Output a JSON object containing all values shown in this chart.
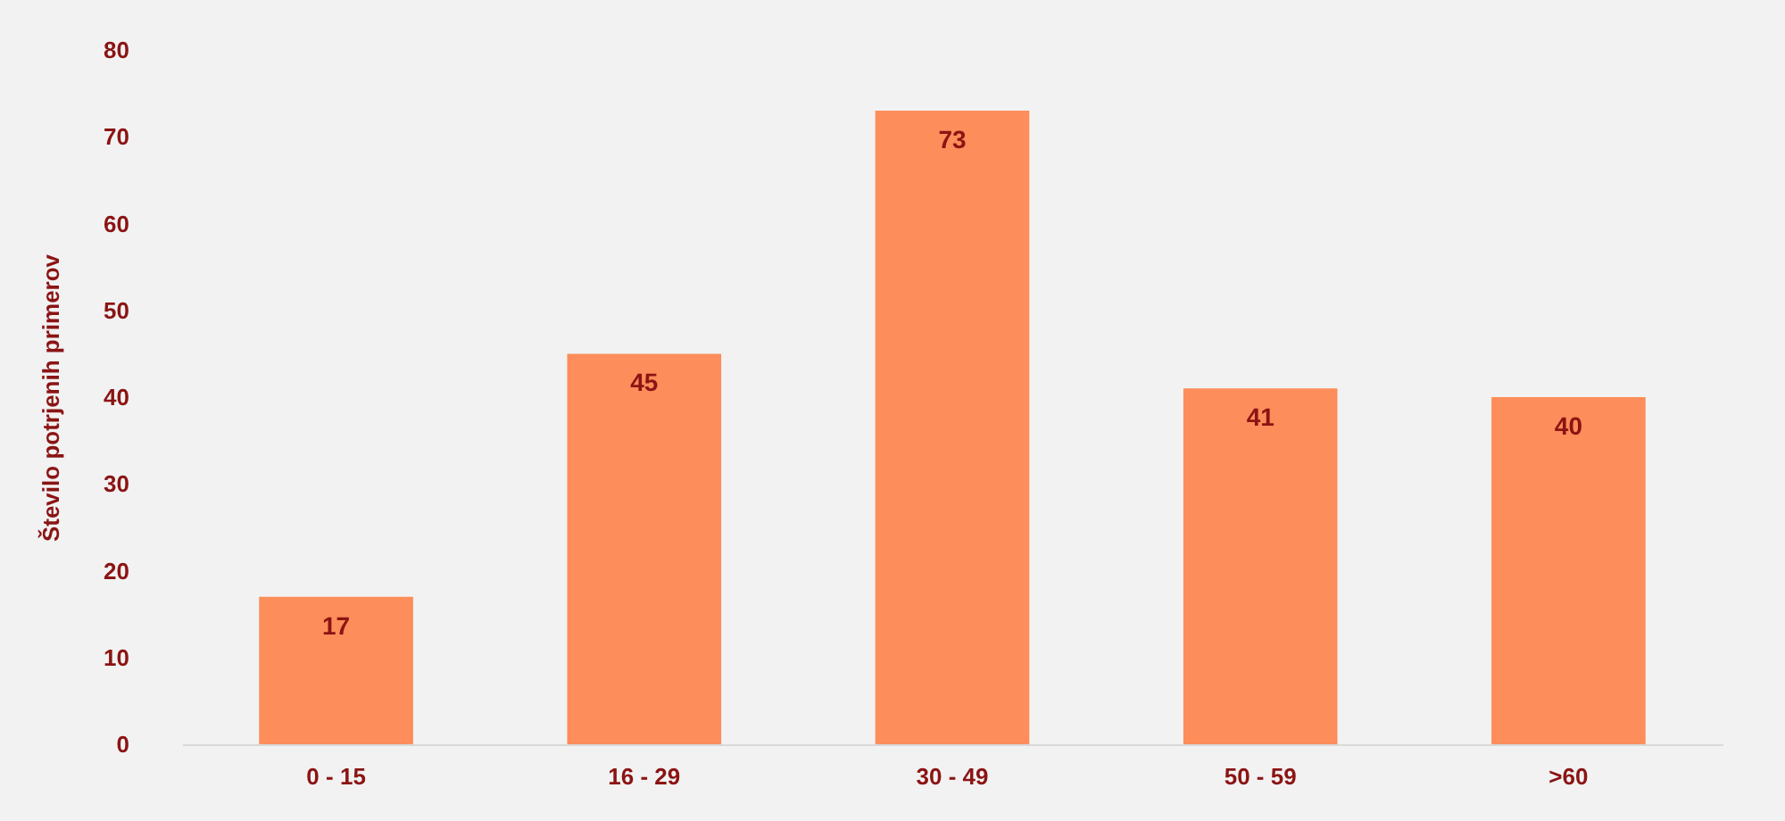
{
  "chart_data": {
    "type": "bar",
    "ylabel": "Število potrjenih primerov",
    "categories": [
      "0 - 15",
      "16 - 29",
      "30 - 49",
      "50 - 59",
      ">60"
    ],
    "values": [
      17,
      45,
      73,
      41,
      40
    ],
    "color": "#fd8d5a",
    "ylim": [
      0,
      80
    ],
    "yticks": [
      0,
      10,
      20,
      30,
      40,
      50,
      60,
      70,
      80
    ],
    "grid": false,
    "data_labels": true
  }
}
